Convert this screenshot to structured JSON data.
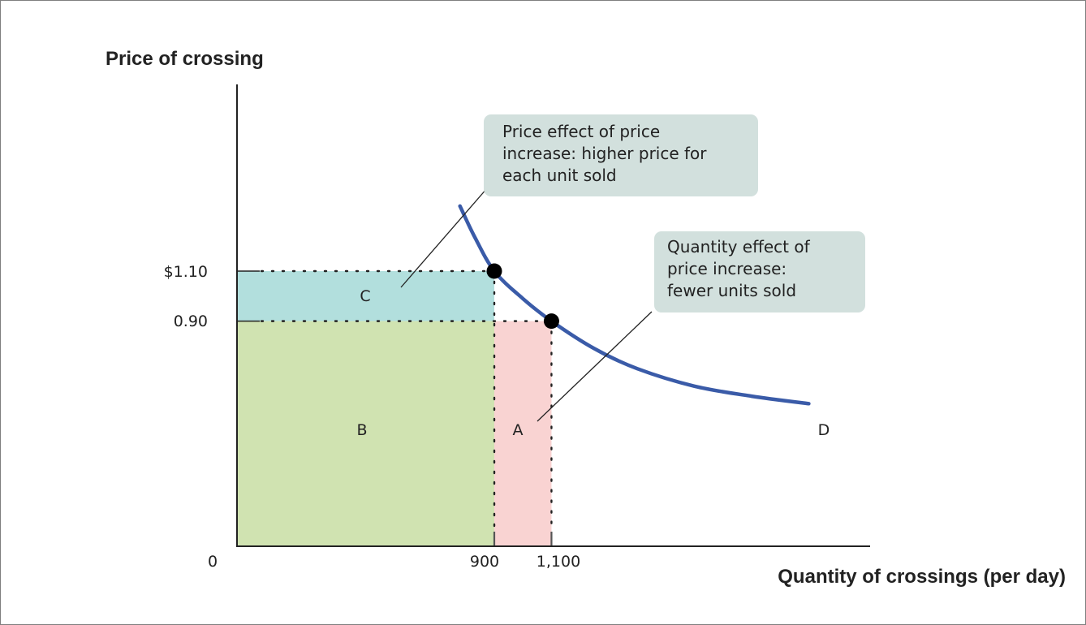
{
  "chart_data": {
    "type": "line",
    "title": "",
    "xlabel": "Quantity of crossings (per day)",
    "ylabel": "Price of crossing",
    "x_ticks": [
      "0",
      "900",
      "1,100"
    ],
    "y_ticks": [
      "$1.10",
      "0.90"
    ],
    "series": [
      {
        "name": "D",
        "color": "#3a5ba8",
        "points": [
          [
            780,
            1.36
          ],
          [
            830,
            1.24
          ],
          [
            900,
            1.1
          ],
          [
            1000,
            0.99
          ],
          [
            1100,
            0.9
          ],
          [
            1250,
            0.79
          ],
          [
            1400,
            0.71
          ],
          [
            1600,
            0.64
          ],
          [
            1800,
            0.6
          ],
          [
            2000,
            0.57
          ]
        ]
      }
    ],
    "highlight_points": [
      {
        "x": 900,
        "y": 1.1
      },
      {
        "x": 1100,
        "y": 0.9
      }
    ],
    "regions": [
      {
        "label": "C",
        "x0": 0,
        "x1": 900,
        "y0": 0.9,
        "y1": 1.1,
        "color": "#b2dfdd"
      },
      {
        "label": "B",
        "x0": 0,
        "x1": 900,
        "y0": 0,
        "y1": 0.9,
        "color": "#d0e3b1"
      },
      {
        "label": "A",
        "x0": 900,
        "x1": 1100,
        "y0": 0,
        "y1": 0.9,
        "color": "#f9d3d2"
      }
    ],
    "annotations": [
      {
        "lines": [
          "Price effect of price",
          "increase: higher price for",
          "each unit sold"
        ]
      },
      {
        "lines": [
          "Quantity effect of",
          "price increase:",
          "fewer units sold"
        ]
      }
    ]
  }
}
